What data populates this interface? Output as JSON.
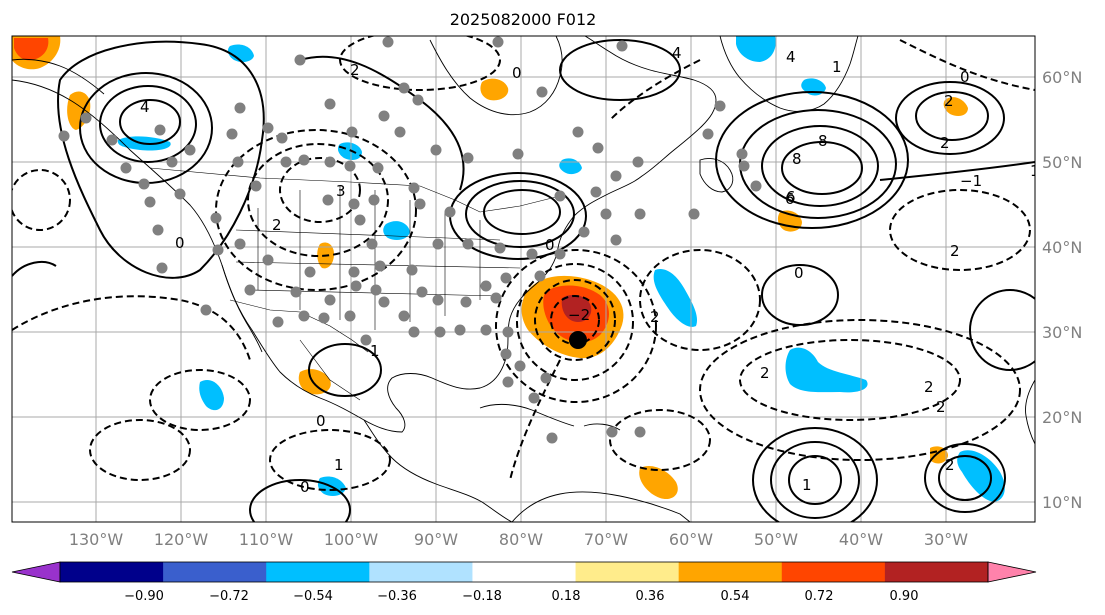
{
  "title": "2025082000 F012",
  "longitude_labels": [
    "130°W",
    "120°W",
    "110°W",
    "100°W",
    "90°W",
    "80°W",
    "70°W",
    "60°W",
    "50°W",
    "40°W",
    "30°W"
  ],
  "latitude_labels": [
    "60°N",
    "50°N",
    "40°N",
    "30°N",
    "20°N",
    "10°N"
  ],
  "colorbar": {
    "ticks": [
      "−0.90",
      "−0.72",
      "−0.54",
      "−0.36",
      "−0.18",
      "0.18",
      "0.36",
      "0.54",
      "0.72",
      "0.90"
    ],
    "colors": [
      "#9932cc",
      "#00008b",
      "#3a5fcd",
      "#00bfff",
      "#b0e2ff",
      "#ffffff",
      "#ffec8b",
      "#ffa500",
      "#ff4500",
      "#b22222",
      "#ff82ab"
    ]
  },
  "contour_labels": [
    "0",
    "2",
    "4",
    "6",
    "8",
    "1",
    "3",
    "0",
    "2",
    "1",
    "−2",
    "0",
    "2",
    "4",
    "0",
    "6",
    "8",
    "2",
    "4",
    "2",
    "0",
    "2",
    "1",
    "2",
    "2",
    "1",
    "2",
    "−1",
    "0",
    "1",
    "0",
    "2"
  ],
  "storm_marker": {
    "lon": -71,
    "lat": 29.2
  }
}
